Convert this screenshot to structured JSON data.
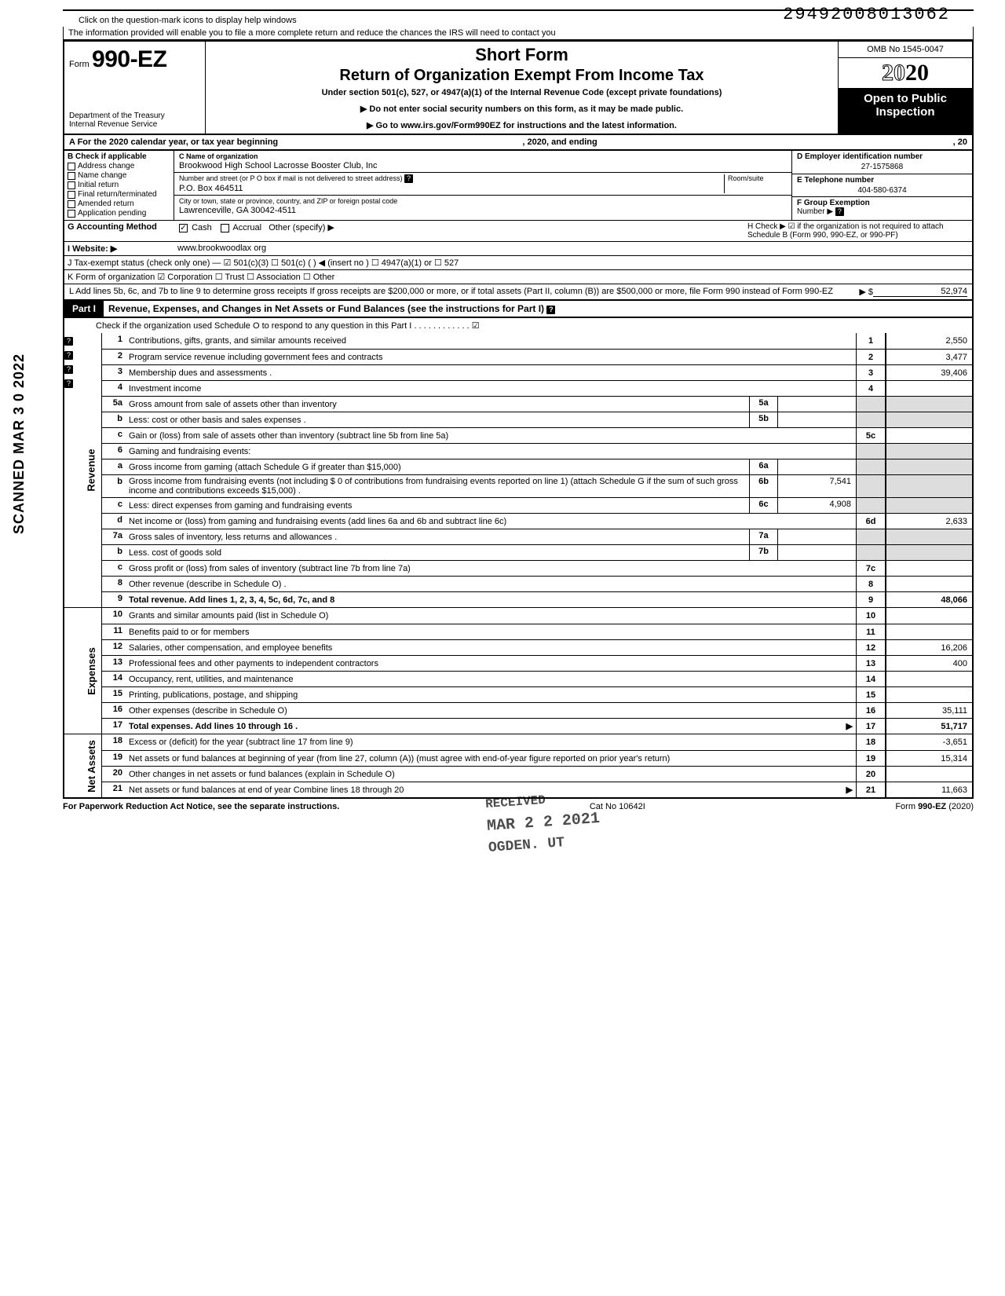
{
  "stamp_number": "29492008013062",
  "hint1": "Click on the question-mark icons to display help windows",
  "hint2": "The information provided will enable you to file a more complete return and reduce the chances the IRS will need to contact you",
  "header": {
    "form_prefix": "Form",
    "form_number": "990-EZ",
    "dept1": "Department of the Treasury",
    "dept2": "Internal Revenue Service",
    "title1": "Short Form",
    "title2": "Return of Organization Exempt From Income Tax",
    "subtitle": "Under section 501(c), 527, or 4947(a)(1) of the Internal Revenue Code (except private foundations)",
    "arrow1": "▶ Do not enter social security numbers on this form, as it may be made public.",
    "arrow2": "▶ Go to www.irs.gov/Form990EZ for instructions and the latest information.",
    "omb": "OMB No 1545-0047",
    "year_outline": "20",
    "year_bold": "20",
    "open1": "Open to Public",
    "open2": "Inspection"
  },
  "rowA": {
    "left": "A  For the 2020 calendar year, or tax year beginning",
    "mid": ", 2020, and ending",
    "right": ", 20"
  },
  "checkB": {
    "title": "B  Check if applicable",
    "items": [
      "Address change",
      "Name change",
      "Initial return",
      "Final return/terminated",
      "Amended return",
      "Application pending"
    ]
  },
  "colC": {
    "name_label": "C  Name of organization",
    "name": "Brookwood High School Lacrosse Booster Club, Inc",
    "addr_label": "Number and street (or P O  box if mail is not delivered to street address)",
    "room_label": "Room/suite",
    "addr": "P.O. Box 464511",
    "city_label": "City or town, state or province, country, and ZIP or foreign postal code",
    "city": "Lawrenceville, GA 30042-4511"
  },
  "colD": {
    "ein_label": "D Employer identification number",
    "ein": "27-1575868",
    "tel_label": "E  Telephone number",
    "tel": "404-580-6374",
    "grp_label": "F  Group Exemption",
    "grp_label2": "Number  ▶"
  },
  "rowG": {
    "label": "G  Accounting Method",
    "cash": "Cash",
    "accrual": "Accrual",
    "other": "Other (specify) ▶"
  },
  "rowH": "H  Check ▶ ☑ if the organization is not required to attach Schedule B (Form 990, 990-EZ, or 990-PF)",
  "rowI": {
    "label": "I   Website: ▶",
    "val": "www.brookwoodlax org"
  },
  "rowJ": "J  Tax-exempt status (check only one) —  ☑ 501(c)(3)   ☐ 501(c) (        ) ◀ (insert no ) ☐ 4947(a)(1) or   ☐ 527",
  "rowK": "K  Form of organization    ☑ Corporation    ☐ Trust    ☐ Association    ☐ Other",
  "rowL": {
    "text": "L  Add lines 5b, 6c, and 7b to line 9 to determine gross receipts  If gross receipts are $200,000 or more, or if total assets (Part II, column (B)) are $500,000 or more, file Form 990 instead of Form 990-EZ",
    "arrow": "▶   $",
    "amt": "52,974"
  },
  "partI": {
    "label": "Part I",
    "title": "Revenue, Expenses, and Changes in Net Assets or Fund Balances (see the instructions for Part I)",
    "check": "Check if the organization used Schedule O to respond to any question in this Part I  .  .  .  .  .  .  .  .  .  .  .  .  ☑"
  },
  "sections": {
    "revenue": "Revenue",
    "expenses": "Expenses",
    "netassets": "Net Assets"
  },
  "lines": [
    {
      "num": "1",
      "desc": "Contributions, gifts, grants, and similar amounts received",
      "box": "1",
      "amt": "2,550"
    },
    {
      "num": "2",
      "desc": "Program service revenue including government fees and contracts",
      "box": "2",
      "amt": "3,477"
    },
    {
      "num": "3",
      "desc": "Membership dues and assessments .",
      "box": "3",
      "amt": "39,406"
    },
    {
      "num": "4",
      "desc": "Investment income",
      "box": "4",
      "amt": ""
    },
    {
      "num": "5a",
      "desc": "Gross amount from sale of assets other than inventory",
      "ibox": "5a",
      "iamt": ""
    },
    {
      "num": "b",
      "desc": "Less: cost or other basis and sales expenses .",
      "ibox": "5b",
      "iamt": ""
    },
    {
      "num": "c",
      "desc": "Gain or (loss) from sale of assets other than inventory (subtract line 5b from line 5a)",
      "box": "5c",
      "amt": ""
    },
    {
      "num": "6",
      "desc": "Gaming and fundraising events:"
    },
    {
      "num": "a",
      "desc": "Gross income from gaming (attach Schedule G if greater than $15,000)",
      "ibox": "6a",
      "iamt": ""
    },
    {
      "num": "b",
      "desc": "Gross income from fundraising events (not including  $                       0  of contributions from fundraising events reported on line 1) (attach Schedule G if the sum of such gross income and contributions exceeds $15,000) .",
      "ibox": "6b",
      "iamt": "7,541"
    },
    {
      "num": "c",
      "desc": "Less: direct expenses from gaming and fundraising events",
      "ibox": "6c",
      "iamt": "4,908"
    },
    {
      "num": "d",
      "desc": "Net income or (loss) from gaming and fundraising events (add lines 6a and 6b and subtract line 6c)",
      "box": "6d",
      "amt": "2,633"
    },
    {
      "num": "7a",
      "desc": "Gross sales of inventory, less returns and allowances  .",
      "ibox": "7a",
      "iamt": ""
    },
    {
      "num": "b",
      "desc": "Less. cost of goods sold",
      "ibox": "7b",
      "iamt": ""
    },
    {
      "num": "c",
      "desc": "Gross profit or (loss) from sales of inventory (subtract line 7b from line 7a)",
      "box": "7c",
      "amt": ""
    },
    {
      "num": "8",
      "desc": "Other revenue (describe in Schedule O) .",
      "box": "8",
      "amt": ""
    },
    {
      "num": "9",
      "desc": "Total revenue. Add lines 1, 2, 3, 4, 5c, 6d, 7c, and 8",
      "box": "9",
      "amt": "48,066",
      "bold": true
    }
  ],
  "exp_lines": [
    {
      "num": "10",
      "desc": "Grants and similar amounts paid (list in Schedule O)",
      "box": "10",
      "amt": ""
    },
    {
      "num": "11",
      "desc": "Benefits paid to or for members",
      "box": "11",
      "amt": ""
    },
    {
      "num": "12",
      "desc": "Salaries, other compensation, and employee benefits",
      "box": "12",
      "amt": "16,206"
    },
    {
      "num": "13",
      "desc": "Professional fees and other payments to independent contractors",
      "box": "13",
      "amt": "400"
    },
    {
      "num": "14",
      "desc": "Occupancy, rent, utilities, and maintenance",
      "box": "14",
      "amt": ""
    },
    {
      "num": "15",
      "desc": "Printing, publications, postage, and shipping",
      "box": "15",
      "amt": ""
    },
    {
      "num": "16",
      "desc": "Other expenses (describe in Schedule O)",
      "box": "16",
      "amt": "35,111"
    },
    {
      "num": "17",
      "desc": "Total expenses. Add lines 10 through 16  .",
      "box": "17",
      "amt": "51,717",
      "bold": true,
      "arrow": true
    }
  ],
  "na_lines": [
    {
      "num": "18",
      "desc": "Excess or (deficit) for the year (subtract line 17 from line 9)",
      "box": "18",
      "amt": "-3,651"
    },
    {
      "num": "19",
      "desc": "Net assets or fund balances at beginning of year (from line 27, column (A)) (must agree with end-of-year figure reported on prior year's return)",
      "box": "19",
      "amt": "15,314"
    },
    {
      "num": "20",
      "desc": "Other changes in net assets or fund balances (explain in Schedule O)",
      "box": "20",
      "amt": ""
    },
    {
      "num": "21",
      "desc": "Net assets or fund balances at end of year  Combine lines 18 through 20",
      "box": "21",
      "amt": "11,663",
      "arrow": true
    }
  ],
  "scanned": "SCANNED MAR 3 0 2022",
  "stamp_received": {
    "l1": "RECEIVED",
    "l2": "MAR 2 2 2021",
    "l3": "OGDEN. UT"
  },
  "footer": {
    "left": "For Paperwork Reduction Act Notice, see the separate instructions.",
    "mid": "Cat  No  10642I",
    "right": "Form 990-EZ (2020)"
  }
}
